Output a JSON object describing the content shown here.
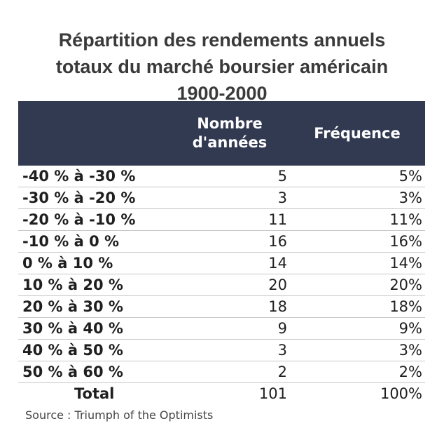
{
  "title_lines": [
    "Répartition des rendements annuels",
    "totaux du marché boursier américain",
    "1900-2000"
  ],
  "header": {
    "col1": "",
    "col2_line1": "Nombre",
    "col2_line2": "d'années",
    "col3": "Fréquence"
  },
  "rows": [
    {
      "range": "-40 % à -30 %",
      "count": "5",
      "freq": "5%"
    },
    {
      "range": "-30 % à -20 %",
      "count": "3",
      "freq": "3%"
    },
    {
      "range": "-20 % à -10 %",
      "count": "11",
      "freq": "11%"
    },
    {
      "range": "-10 % à 0 %",
      "count": "16",
      "freq": "16%"
    },
    {
      "range": "0 % à 10 %",
      "count": "14",
      "freq": "14%"
    },
    {
      "range": "10 % à 20 %",
      "count": "20",
      "freq": "20%"
    },
    {
      "range": "20 % à 30 %",
      "count": "18",
      "freq": "18%"
    },
    {
      "range": "30 % à 40 %",
      "count": "9",
      "freq": "9%"
    },
    {
      "range": "40 % à 50 %",
      "count": "3",
      "freq": "3%"
    },
    {
      "range": "50 % à 60 %",
      "count": "2",
      "freq": "2%"
    }
  ],
  "total": {
    "label": "Total",
    "count": "101",
    "freq": "100%"
  },
  "source": "Source : Triumph of the Optimists",
  "colors": {
    "header_bg": "#323a52",
    "header_text": "#ffffff",
    "row_divider": "#c7c7c7"
  },
  "chart_data": {
    "type": "table",
    "title": "Répartition des rendements annuels totaux du marché boursier américain 1900-2000",
    "columns": [
      "",
      "Nombre d'années",
      "Fréquence"
    ],
    "categories": [
      "-40 % à -30 %",
      "-30 % à -20 %",
      "-20 % à -10 %",
      "-10 % à 0 %",
      "0 % à 10 %",
      "10 % à 20 %",
      "20 % à 30 %",
      "30 % à 40 %",
      "40 % à 50 %",
      "50 % à 60 %"
    ],
    "series": [
      {
        "name": "Nombre d'années",
        "values": [
          5,
          3,
          11,
          16,
          14,
          20,
          18,
          9,
          3,
          2
        ]
      },
      {
        "name": "Fréquence",
        "values": [
          5,
          3,
          11,
          16,
          14,
          20,
          18,
          9,
          3,
          2
        ]
      }
    ],
    "total": {
      "Nombre d'années": 101,
      "Fréquence": 100
    }
  }
}
